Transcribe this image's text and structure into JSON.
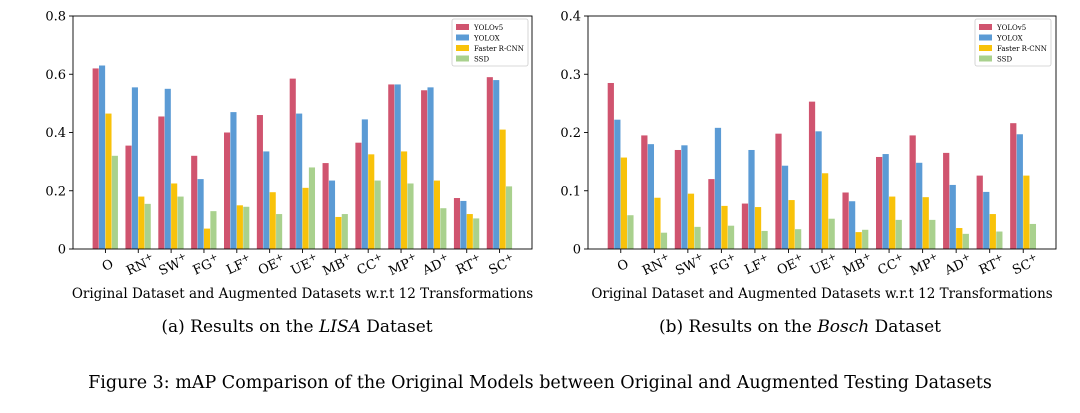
{
  "colors": {
    "YOLOv5": "#d0546f",
    "YOLOX": "#5b9bd5",
    "Faster R-CNN": "#f8c20a",
    "SSD": "#a9d18e"
  },
  "categories": [
    "O",
    "RN+",
    "SW+",
    "FG+",
    "LF+",
    "OE+",
    "UE+",
    "MB+",
    "CC+",
    "MP+",
    "AD+",
    "RT+",
    "SC+"
  ],
  "chart_data": [
    {
      "type": "bar",
      "subcaption_prefix": "(a) Results on the ",
      "subcaption_dataset": "LISA",
      "subcaption_suffix": " Dataset",
      "xlabel": "Original Dataset and Augmented Datasets w.r.t 12 Transformations",
      "ylabel": "",
      "ylim": [
        0,
        0.8
      ],
      "yticks": [
        "0",
        "0.2",
        "0.4",
        "0.6",
        "0.8"
      ],
      "legend": "top-right",
      "series": [
        {
          "name": "YOLOv5",
          "values": [
            0.62,
            0.355,
            0.455,
            0.32,
            0.4,
            0.46,
            0.585,
            0.295,
            0.365,
            0.565,
            0.545,
            0.175,
            0.59
          ]
        },
        {
          "name": "YOLOX",
          "values": [
            0.63,
            0.555,
            0.55,
            0.24,
            0.47,
            0.335,
            0.465,
            0.235,
            0.445,
            0.565,
            0.555,
            0.165,
            0.58
          ]
        },
        {
          "name": "Faster R-CNN",
          "values": [
            0.465,
            0.18,
            0.225,
            0.07,
            0.15,
            0.195,
            0.21,
            0.11,
            0.325,
            0.335,
            0.235,
            0.12,
            0.41
          ]
        },
        {
          "name": "SSD",
          "values": [
            0.32,
            0.155,
            0.18,
            0.13,
            0.145,
            0.12,
            0.28,
            0.12,
            0.235,
            0.225,
            0.14,
            0.105,
            0.215
          ]
        }
      ]
    },
    {
      "type": "bar",
      "subcaption_prefix": "(b) Results on the ",
      "subcaption_dataset": "Bosch",
      "subcaption_suffix": " Dataset",
      "xlabel": "Original Dataset and Augmented Datasets w.r.t 12 Transformations",
      "ylabel": "",
      "ylim": [
        0,
        0.4
      ],
      "yticks": [
        "0",
        "0.1",
        "0.2",
        "0.3",
        "0.4"
      ],
      "legend": "top-right",
      "series": [
        {
          "name": "YOLOv5",
          "values": [
            0.285,
            0.195,
            0.17,
            0.12,
            0.078,
            0.198,
            0.253,
            0.097,
            0.158,
            0.195,
            0.165,
            0.126,
            0.216
          ]
        },
        {
          "name": "YOLOX",
          "values": [
            0.222,
            0.18,
            0.178,
            0.208,
            0.17,
            0.143,
            0.202,
            0.082,
            0.163,
            0.148,
            0.11,
            0.098,
            0.197
          ]
        },
        {
          "name": "Faster R-CNN",
          "values": [
            0.157,
            0.088,
            0.095,
            0.074,
            0.072,
            0.084,
            0.13,
            0.029,
            0.09,
            0.089,
            0.036,
            0.06,
            0.126
          ]
        },
        {
          "name": "SSD",
          "values": [
            0.058,
            0.028,
            0.038,
            0.04,
            0.031,
            0.034,
            0.052,
            0.033,
            0.05,
            0.05,
            0.026,
            0.03,
            0.043
          ]
        }
      ]
    }
  ],
  "figure_caption": "Figure 3: mAP Comparison of the Original Models between Original and Augmented Testing Datasets"
}
